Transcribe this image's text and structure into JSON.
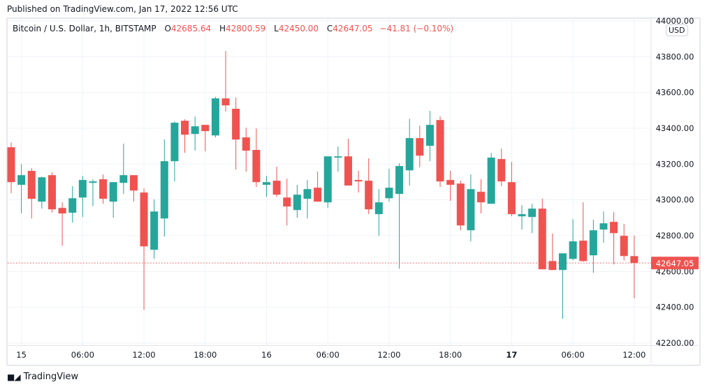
{
  "published": "Published on TradingView.com, Jan 17, 2022 12:56 UTC",
  "legend": {
    "symbol": "Bitcoin / U.S. Dollar, 1h, BITSTAMP",
    "o_label": "O",
    "o": "42685.64",
    "h_label": "H",
    "h": "42800.59",
    "l_label": "L",
    "l": "42450.00",
    "c_label": "C",
    "c": "42647.05",
    "change": "−41.81 (−0.10%)"
  },
  "currency_badge": "USD",
  "footer_brand": "TradingView",
  "colors": {
    "up": "#26a69a",
    "down": "#ef5350",
    "grid": "#f0f3fa",
    "text": "#131722"
  },
  "chart_data": {
    "type": "candlestick",
    "title": "Bitcoin / U.S. Dollar, 1h, BITSTAMP",
    "ylim": [
      42200,
      44000
    ],
    "y_ticks": [
      "44000.00",
      "43800.00",
      "43600.00",
      "43400.00",
      "43200.00",
      "43000.00",
      "42800.00",
      "42600.00",
      "42400.00",
      "42200.00"
    ],
    "y_tick_values": [
      44000,
      43800,
      43600,
      43400,
      43200,
      43000,
      42800,
      42600,
      42400,
      42200
    ],
    "x_ticks": [
      {
        "label": "15",
        "index": 1,
        "bold": false
      },
      {
        "label": "06:00",
        "index": 7,
        "bold": false
      },
      {
        "label": "12:00",
        "index": 13,
        "bold": false
      },
      {
        "label": "18:00",
        "index": 19,
        "bold": false
      },
      {
        "label": "16",
        "index": 25,
        "bold": false
      },
      {
        "label": "06:00",
        "index": 31,
        "bold": false
      },
      {
        "label": "12:00",
        "index": 37,
        "bold": false
      },
      {
        "label": "18:00",
        "index": 43,
        "bold": false
      },
      {
        "label": "17",
        "index": 49,
        "bold": true
      },
      {
        "label": "06:00",
        "index": 55,
        "bold": false
      },
      {
        "label": "12:00",
        "index": 61,
        "bold": false
      }
    ],
    "last_price": 42647.05,
    "last_price_label": "42647.05",
    "ohlc": [
      [
        43294,
        43321,
        43037,
        43099
      ],
      [
        43084,
        43200,
        42924,
        43138
      ],
      [
        43162,
        43177,
        42896,
        43006
      ],
      [
        42990,
        43130,
        42951,
        43126
      ],
      [
        43138,
        43154,
        42928,
        42947
      ],
      [
        42955,
        42986,
        42744,
        42924
      ],
      [
        42928,
        43076,
        42873,
        43009
      ],
      [
        43013,
        43134,
        42904,
        43111
      ],
      [
        43095,
        43115,
        42966,
        43103
      ],
      [
        43115,
        43142,
        42978,
        43006
      ],
      [
        42990,
        43099,
        42900,
        43099
      ],
      [
        43095,
        43314,
        43033,
        43138
      ],
      [
        43138,
        43138,
        42990,
        43052
      ],
      [
        43041,
        43064,
        42385,
        42740
      ],
      [
        42721,
        43002,
        42670,
        42935
      ],
      [
        42896,
        43337,
        42795,
        43216
      ],
      [
        43216,
        43438,
        43103,
        43431
      ],
      [
        43442,
        43450,
        43263,
        43364
      ],
      [
        43368,
        43466,
        43275,
        43411
      ],
      [
        43419,
        43419,
        43271,
        43384
      ],
      [
        43360,
        43575,
        43349,
        43567
      ],
      [
        43567,
        43832,
        43493,
        43528
      ],
      [
        43509,
        43571,
        43169,
        43337
      ],
      [
        43349,
        43403,
        43158,
        43275
      ],
      [
        43279,
        43399,
        43072,
        43099
      ],
      [
        43084,
        43134,
        43017,
        43099
      ],
      [
        43107,
        43185,
        43017,
        43029
      ],
      [
        43013,
        43119,
        42857,
        42963
      ],
      [
        42943,
        43084,
        42900,
        43029
      ],
      [
        43006,
        43111,
        42896,
        43060
      ],
      [
        43068,
        43158,
        42990,
        42990
      ],
      [
        42986,
        43243,
        42955,
        43243
      ],
      [
        43236,
        43298,
        43158,
        43243
      ],
      [
        43243,
        43341,
        43080,
        43080
      ],
      [
        43111,
        43162,
        43041,
        43103
      ],
      [
        43107,
        43232,
        42920,
        42947
      ],
      [
        42920,
        43060,
        42799,
        42986
      ],
      [
        43009,
        43173,
        42990,
        43068
      ],
      [
        43033,
        43204,
        42616,
        43189
      ],
      [
        43165,
        43454,
        43080,
        43345
      ],
      [
        43345,
        43415,
        43181,
        43247
      ],
      [
        43302,
        43497,
        43216,
        43419
      ],
      [
        43446,
        43466,
        43072,
        43103
      ],
      [
        43111,
        43162,
        42994,
        43084
      ],
      [
        43091,
        43107,
        42830,
        42857
      ],
      [
        42830,
        43142,
        42768,
        43060
      ],
      [
        43045,
        43115,
        42924,
        42986
      ],
      [
        42978,
        43263,
        42978,
        43236
      ],
      [
        43228,
        43286,
        43076,
        43103
      ],
      [
        43099,
        43212,
        42908,
        42920
      ],
      [
        42908,
        42970,
        42834,
        42920
      ],
      [
        42904,
        42978,
        42814,
        42951
      ],
      [
        42951,
        43006,
        42612,
        42612
      ],
      [
        42658,
        42811,
        42608,
        42608
      ],
      [
        42608,
        42701,
        42335,
        42701
      ],
      [
        42670,
        42892,
        42662,
        42768
      ],
      [
        42772,
        42986,
        42654,
        42658
      ],
      [
        42690,
        42889,
        42592,
        42830
      ],
      [
        42834,
        42935,
        42760,
        42869
      ],
      [
        42877,
        42931,
        42639,
        42814
      ],
      [
        42799,
        42865,
        42662,
        42686
      ],
      [
        42685.64,
        42800.59,
        42450.0,
        42647.05
      ]
    ]
  }
}
